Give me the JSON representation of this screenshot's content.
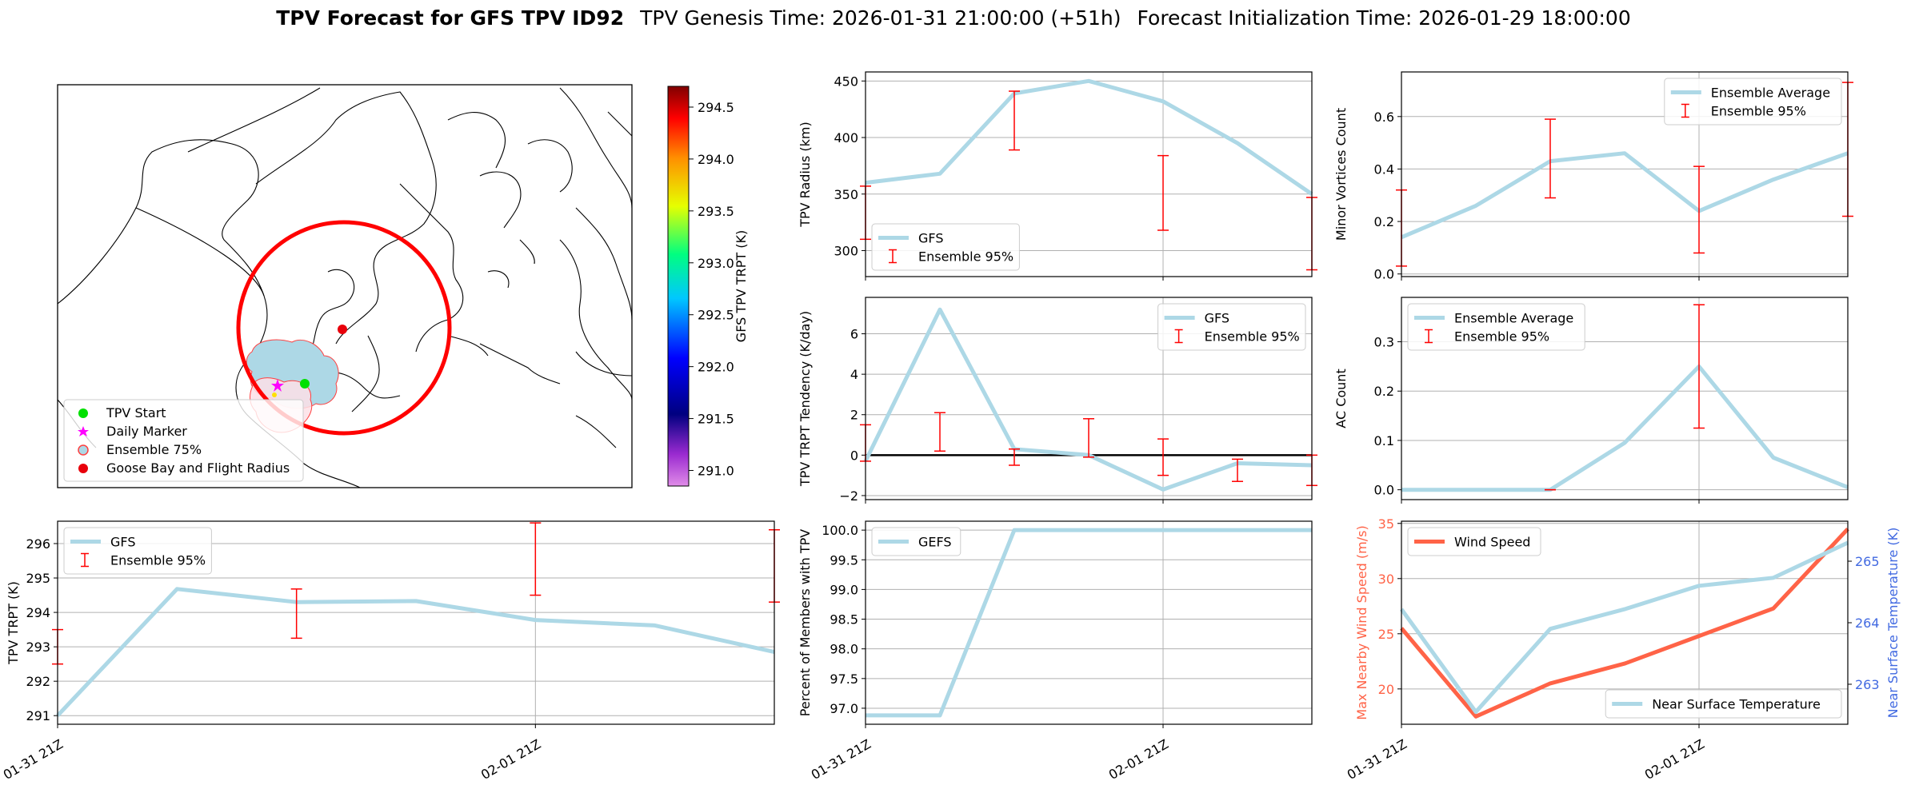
{
  "header": {
    "title_bold": "TPV Forecast for GFS TPV ID92",
    "genesis": "TPV Genesis Time: 2026-01-31 21:00:00 (+51h)",
    "init": "Forecast Initialization Time: 2026-01-29 18:00:00"
  },
  "colors": {
    "gfs_line": "#add8e6",
    "error_bar": "#ff0000",
    "wind": "#ff6347",
    "temp_axis": "#4169e1",
    "grid": "#b0b0b0",
    "circle": "#ff0000"
  },
  "map": {
    "colorbar_label": "GFS TPV TRPT (K)",
    "colorbar_ticks": [
      "291.0",
      "291.5",
      "292.0",
      "292.5",
      "293.0",
      "293.5",
      "294.0",
      "294.5"
    ],
    "colorbar_range": [
      290.85,
      294.7
    ],
    "legend": [
      {
        "label": "TPV Start",
        "icon": "green-dot-icon"
      },
      {
        "label": "Daily Marker",
        "icon": "magenta-star-icon"
      },
      {
        "label": "Ensemble 75%",
        "icon": "ensemble-blob-icon"
      },
      {
        "label": "Goose Bay and Flight Radius",
        "icon": "red-dot-icon"
      }
    ]
  },
  "chart_data": [
    {
      "id": "radius",
      "type": "line",
      "title": "",
      "ylabel": "TPV Radius (km)",
      "ylim": [
        277,
        458
      ],
      "yticks": [
        300,
        350,
        400,
        450
      ],
      "ytick_labels": [
        "300",
        "350",
        "400",
        "450"
      ],
      "x": [
        0,
        1,
        2,
        3,
        4,
        5,
        6
      ],
      "series": [
        {
          "name": "GFS",
          "values": [
            360,
            368,
            439,
            450,
            432,
            395,
            350
          ]
        }
      ],
      "errorbars": [
        {
          "x": 0,
          "low": 310,
          "high": 357
        },
        {
          "x": 2,
          "low": 389,
          "high": 441
        },
        {
          "x": 4,
          "low": 318,
          "high": 384
        },
        {
          "x": 6,
          "low": 283,
          "high": 347
        }
      ],
      "legend": [
        "GFS",
        "Ensemble 95%"
      ],
      "legend_pos": "lower-left"
    },
    {
      "id": "minor",
      "type": "line",
      "ylabel": "Minor Vortices Count",
      "ylim": [
        -0.01,
        0.77
      ],
      "yticks": [
        0.0,
        0.2,
        0.4,
        0.6
      ],
      "ytick_labels": [
        "0.0",
        "0.2",
        "0.4",
        "0.6"
      ],
      "x": [
        0,
        1,
        2,
        3,
        4,
        5,
        6
      ],
      "series": [
        {
          "name": "Ensemble Average",
          "values": [
            0.14,
            0.26,
            0.43,
            0.46,
            0.24,
            0.36,
            0.46
          ]
        }
      ],
      "errorbars": [
        {
          "x": 0,
          "low": 0.03,
          "high": 0.32
        },
        {
          "x": 2,
          "low": 0.29,
          "high": 0.59
        },
        {
          "x": 4,
          "low": 0.08,
          "high": 0.41
        },
        {
          "x": 6,
          "low": 0.22,
          "high": 0.73
        }
      ],
      "legend": [
        "Ensemble Average",
        "Ensemble 95%"
      ],
      "legend_pos": "upper-right"
    },
    {
      "id": "tendency",
      "type": "line",
      "ylabel": "TPV TRPT Tendency (K/day)",
      "ylim": [
        -2.2,
        7.8
      ],
      "yticks": [
        -2,
        0,
        2,
        4,
        6
      ],
      "ytick_labels": [
        "−2",
        "0",
        "2",
        "4",
        "6"
      ],
      "zero_line": true,
      "x": [
        0,
        1,
        2,
        3,
        4,
        5,
        6
      ],
      "series": [
        {
          "name": "GFS",
          "values": [
            -0.3,
            7.2,
            0.3,
            0.0,
            -1.7,
            -0.4,
            -0.5
          ]
        }
      ],
      "errorbars": [
        {
          "x": 0,
          "low": -0.3,
          "high": 1.5
        },
        {
          "x": 1,
          "low": 0.2,
          "high": 2.1
        },
        {
          "x": 2,
          "low": -0.5,
          "high": 0.3
        },
        {
          "x": 3,
          "low": -0.1,
          "high": 1.8
        },
        {
          "x": 4,
          "low": -1.0,
          "high": 0.8
        },
        {
          "x": 5,
          "low": -1.3,
          "high": -0.2
        },
        {
          "x": 6,
          "low": -1.5,
          "high": 0.0
        }
      ],
      "legend": [
        "GFS",
        "Ensemble 95%"
      ],
      "legend_pos": "upper-right"
    },
    {
      "id": "ac",
      "type": "line",
      "ylabel": "AC Count",
      "ylim": [
        -0.02,
        0.39
      ],
      "yticks": [
        0.0,
        0.1,
        0.2,
        0.3
      ],
      "ytick_labels": [
        "0.0",
        "0.1",
        "0.2",
        "0.3"
      ],
      "x": [
        0,
        1,
        2,
        3,
        4,
        5,
        6
      ],
      "series": [
        {
          "name": "Ensemble Average",
          "values": [
            0.0,
            0.0,
            0.0,
            0.095,
            0.25,
            0.065,
            0.005
          ]
        }
      ],
      "errorbars": [
        {
          "x": 2,
          "low": 0.0,
          "high": 0.0
        },
        {
          "x": 4,
          "low": 0.125,
          "high": 0.375
        }
      ],
      "legend": [
        "Ensemble Average",
        "Ensemble 95%"
      ],
      "legend_pos": "upper-left"
    },
    {
      "id": "trpt",
      "type": "line",
      "ylabel": "TPV TRPT (K)",
      "ylim": [
        290.75,
        296.65
      ],
      "yticks": [
        291,
        292,
        293,
        294,
        295,
        296
      ],
      "ytick_labels": [
        "291",
        "292",
        "293",
        "294",
        "295",
        "296"
      ],
      "x": [
        0,
        1,
        2,
        3,
        4,
        5,
        6
      ],
      "xticks": [
        {
          "x": 0,
          "label": "01-31 21Z"
        },
        {
          "x": 4,
          "label": "02-01 21Z"
        }
      ],
      "series": [
        {
          "name": "GFS",
          "values": [
            291.0,
            294.68,
            294.3,
            294.33,
            293.78,
            293.62,
            292.85
          ]
        }
      ],
      "errorbars": [
        {
          "x": 0,
          "low": 292.5,
          "high": 293.5
        },
        {
          "x": 2,
          "low": 293.25,
          "high": 294.68
        },
        {
          "x": 4,
          "low": 294.5,
          "high": 296.6
        },
        {
          "x": 6,
          "low": 294.3,
          "high": 296.4
        }
      ],
      "legend": [
        "GFS",
        "Ensemble 95%"
      ],
      "legend_pos": "upper-left"
    },
    {
      "id": "members",
      "type": "line",
      "ylabel": "Percent of Members with TPV",
      "ylim": [
        96.73,
        100.15
      ],
      "yticks": [
        97.0,
        97.5,
        98.0,
        98.5,
        99.0,
        99.5,
        100.0
      ],
      "ytick_labels": [
        "97.0",
        "97.5",
        "98.0",
        "98.5",
        "99.0",
        "99.5",
        "100.0"
      ],
      "x": [
        0,
        1,
        2,
        3,
        4,
        5,
        6
      ],
      "xticks": [
        {
          "x": 0,
          "label": "01-31 21Z"
        },
        {
          "x": 4,
          "label": "02-01 21Z"
        }
      ],
      "series": [
        {
          "name": "GEFS",
          "values": [
            96.88,
            96.88,
            100.0,
            100.0,
            100.0,
            100.0,
            100.0
          ]
        }
      ],
      "legend": [
        "GEFS"
      ],
      "legend_pos": "upper-left"
    },
    {
      "id": "wind",
      "type": "line",
      "ylabel": "Max Nearby Wind Speed (m/s)",
      "ylabel_right": "Near Surface Temperature (K)",
      "ylim": [
        16.8,
        35.2
      ],
      "yticks": [
        20,
        25,
        30,
        35
      ],
      "ytick_labels": [
        "20",
        "25",
        "30",
        "35"
      ],
      "ylim_right": [
        262.35,
        265.65
      ],
      "yticks_right": [
        263,
        264,
        265
      ],
      "ytick_labels_right": [
        "263",
        "264",
        "265"
      ],
      "x": [
        0,
        1,
        2,
        3,
        4,
        5,
        6
      ],
      "xticks": [
        {
          "x": 0,
          "label": "01-31 21Z"
        },
        {
          "x": 4,
          "label": "02-01 21Z"
        }
      ],
      "series": [
        {
          "name": "Wind Speed",
          "axis": "left",
          "values": [
            25.5,
            17.5,
            20.5,
            22.3,
            24.8,
            27.3,
            34.5
          ]
        },
        {
          "name": "Near Surface Temperature",
          "axis": "right",
          "values": [
            264.22,
            262.55,
            263.9,
            264.22,
            264.6,
            264.73,
            265.3
          ]
        }
      ],
      "legend": [
        "Wind Speed"
      ],
      "legend2": [
        "Near Surface Temperature"
      ],
      "legend_pos": "upper-left",
      "legend2_pos": "lower-right"
    }
  ]
}
